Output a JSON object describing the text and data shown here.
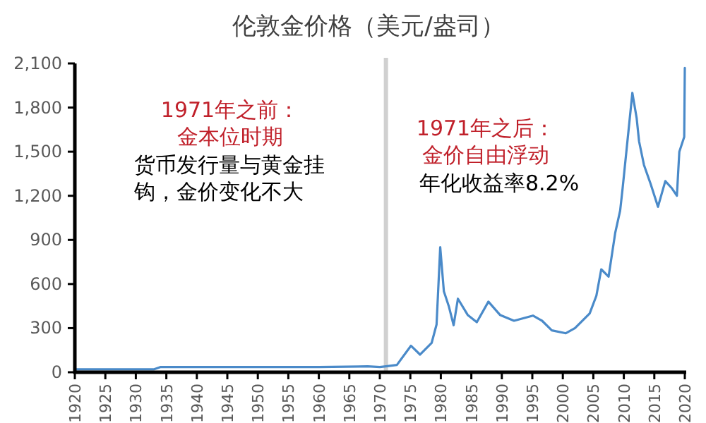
{
  "chart_data": {
    "type": "line",
    "title": "伦敦金价格（美元/盎司）",
    "x": [
      1920,
      1925,
      1933,
      1934,
      1940,
      1950,
      1960,
      1968,
      1970,
      1971,
      1972.8,
      1975.1,
      1976.6,
      1978.5,
      1979.3,
      1979.9,
      1980.5,
      1981.3,
      1982.1,
      1982.8,
      1984.4,
      1985.9,
      1987.8,
      1989.7,
      1992,
      1995.1,
      1996.6,
      1998.2,
      2000.5,
      2002,
      2004.4,
      2005.5,
      2006.3,
      2007.5,
      2008.6,
      2009.4,
      2009.8,
      2011.4,
      2012.1,
      2012.5,
      2013.3,
      2014.4,
      2015.6,
      2016.8,
      2017.9,
      2018.7,
      2019.1,
      2019.9,
      2020
    ],
    "series": [
      {
        "color": "#4a8ac9",
        "values": [
          20,
          20,
          20,
          35,
          35,
          35,
          35,
          40,
          35,
          40,
          50,
          180,
          120,
          200,
          325,
          850,
          550,
          450,
          320,
          500,
          390,
          340,
          480,
          390,
          350,
          385,
          350,
          285,
          265,
          300,
          400,
          520,
          700,
          650,
          950,
          1100,
          1250,
          1900,
          1730,
          1570,
          1410,
          1280,
          1125,
          1300,
          1250,
          1200,
          1500,
          1600,
          2070
        ]
      }
    ],
    "xlim": [
      1920,
      2020
    ],
    "xticks": [
      1920,
      1925,
      1930,
      1935,
      1940,
      1945,
      1950,
      1955,
      1960,
      1965,
      1970,
      1975,
      1980,
      1985,
      1990,
      1995,
      2000,
      2005,
      2010,
      2015,
      2020
    ],
    "ylim": [
      0,
      2100
    ],
    "yticks": [
      0,
      300,
      600,
      900,
      {
        "value": 1200,
        "label": "1,200"
      },
      {
        "value": 1500,
        "label": "1,500"
      },
      {
        "value": 1800,
        "label": "1,800"
      },
      {
        "value": 2100,
        "label": "2,100"
      }
    ],
    "ref_lines": [
      {
        "axis": "x",
        "value": 1971,
        "color": "#d0d0d0"
      }
    ],
    "annotations": [
      "1971年之前：",
      "金本位时期",
      "货币发行量与黄金挂钩，金价变化不大",
      "1971年之后：",
      "金价自由浮动",
      "年化收益率8.2%"
    ]
  }
}
